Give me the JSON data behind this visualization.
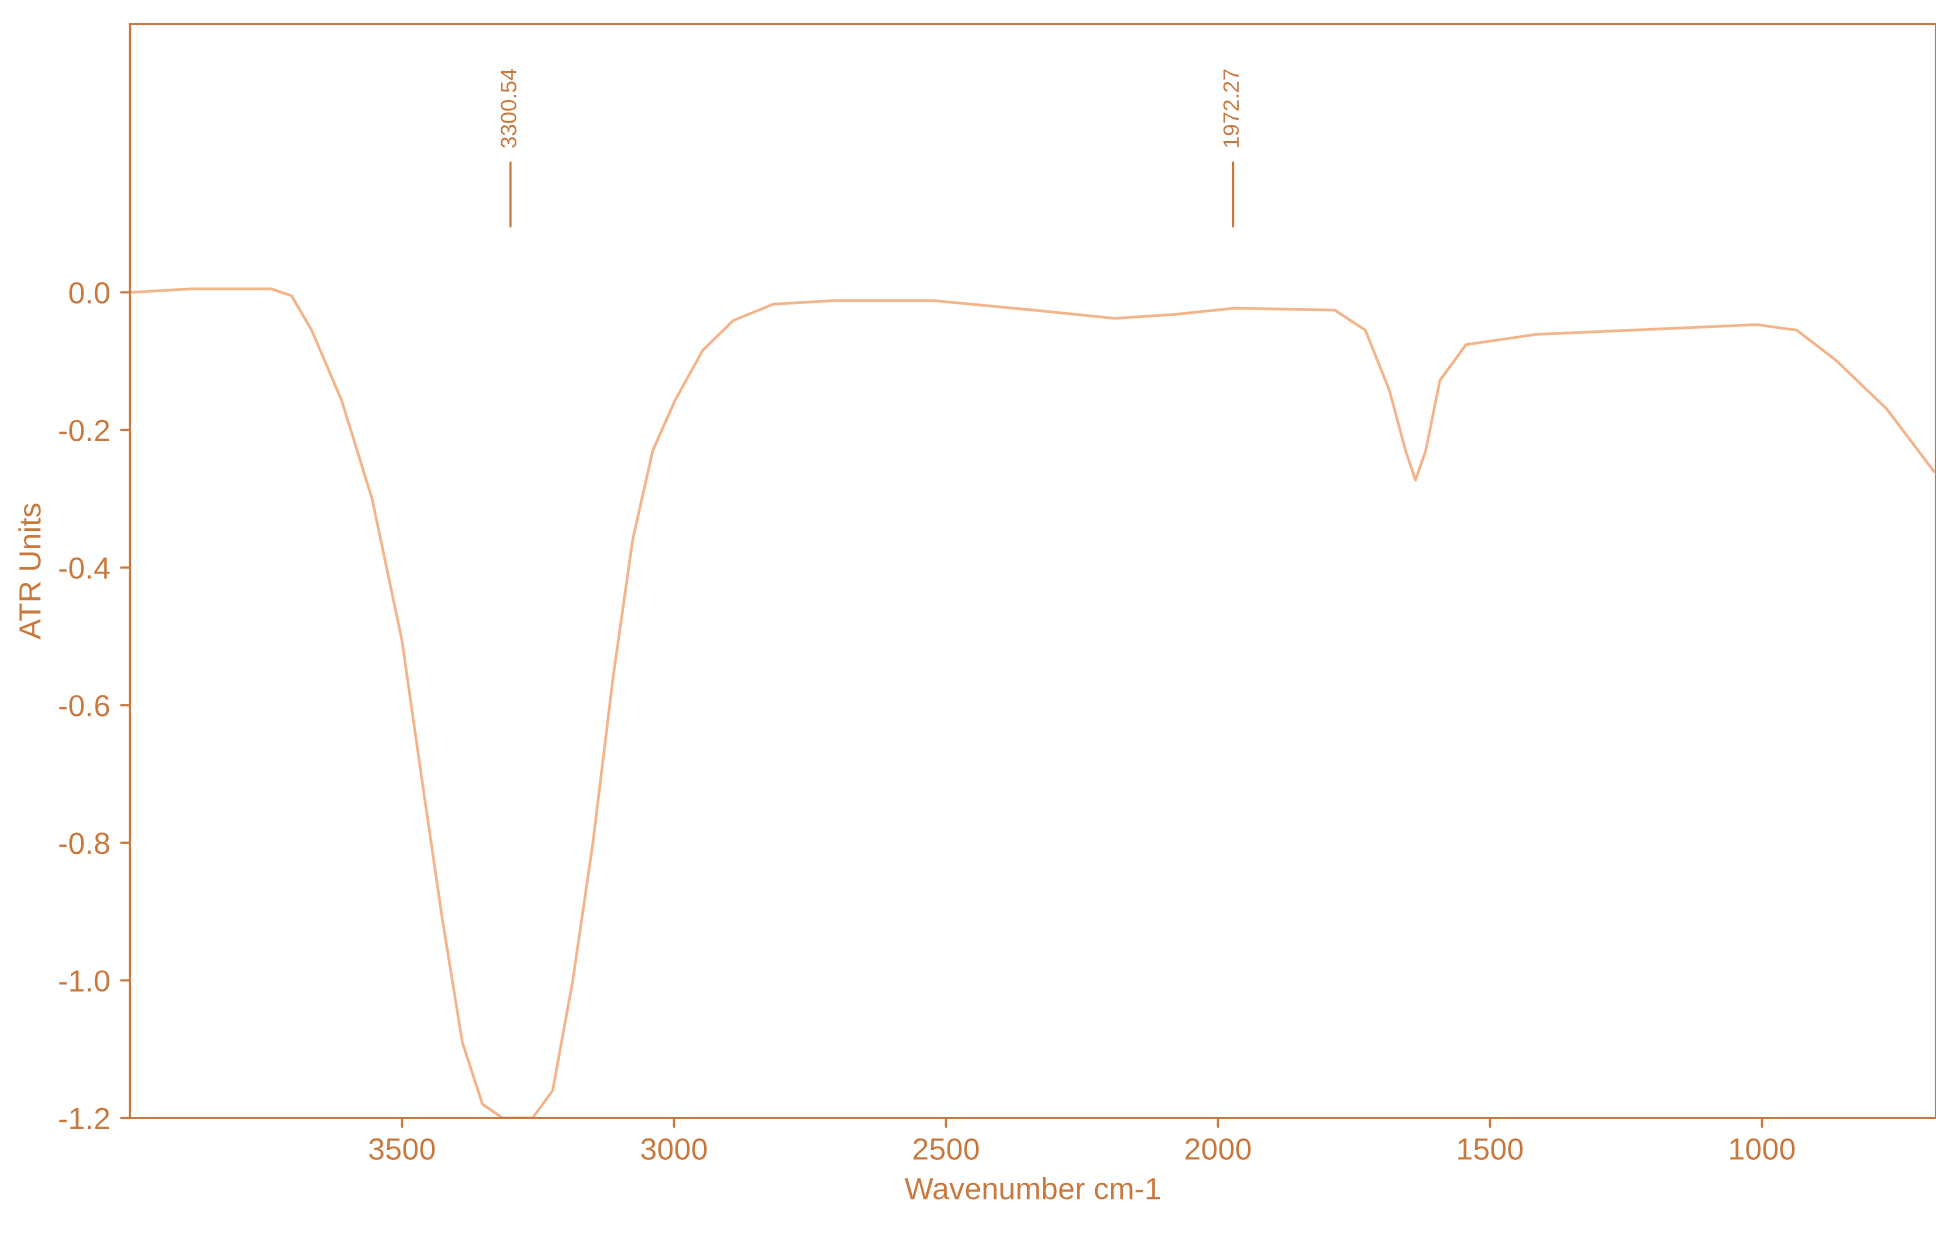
{
  "chart_data": {
    "type": "line",
    "xlabel": "Wavenumber cm-1",
    "ylabel": "ATR Units",
    "xlim": [
      4000,
      680
    ],
    "ylim": [
      -1.2,
      0.39
    ],
    "xticks": [
      3500,
      3000,
      2500,
      2000,
      1500,
      1000
    ],
    "yticks": [
      {
        "value": 0,
        "label": "0.0"
      },
      {
        "value": -0.2,
        "label": "-0.2"
      },
      {
        "value": -0.4,
        "label": "-0.4"
      },
      {
        "value": -0.6,
        "label": "-0.6"
      },
      {
        "value": -0.8,
        "label": "-0.8"
      },
      {
        "value": -1.0,
        "label": "-1.0"
      },
      {
        "value": -1.2,
        "label": "-1.2"
      }
    ],
    "grid": false,
    "legend": false,
    "marker": "none",
    "line_style": "solid",
    "annotations": [
      {
        "text": "3300.54",
        "x": 3300.54
      },
      {
        "text": "1972.27",
        "x": 1972.27
      }
    ],
    "series": [
      {
        "color": "#f2b48a",
        "x": [
          4000,
          3887,
          3740,
          3703,
          3666,
          3611,
          3555,
          3500,
          3463,
          3426,
          3389,
          3352,
          3315,
          3300.54,
          3260,
          3223,
          3186,
          3149,
          3112,
          3076,
          3039,
          2998,
          2947,
          2891,
          2817,
          2707,
          2522,
          2338,
          2190,
          2079,
          1969,
          1785,
          1729,
          1685,
          1655,
          1637,
          1618,
          1592,
          1544,
          1415,
          1009,
          936,
          862,
          770,
          684
        ],
        "values": [
          0.0,
          0.005,
          0.005,
          -0.005,
          -0.055,
          -0.157,
          -0.3,
          -0.506,
          -0.71,
          -0.91,
          -1.09,
          -1.18,
          -1.2,
          -1.2,
          -1.2,
          -1.16,
          -1.0,
          -0.8,
          -0.56,
          -0.36,
          -0.23,
          -0.157,
          -0.084,
          -0.041,
          -0.017,
          -0.012,
          -0.012,
          -0.026,
          -0.038,
          -0.032,
          -0.023,
          -0.026,
          -0.055,
          -0.142,
          -0.23,
          -0.273,
          -0.23,
          -0.128,
          -0.076,
          -0.061,
          -0.047,
          -0.055,
          -0.1,
          -0.17,
          -0.26
        ]
      }
    ]
  }
}
